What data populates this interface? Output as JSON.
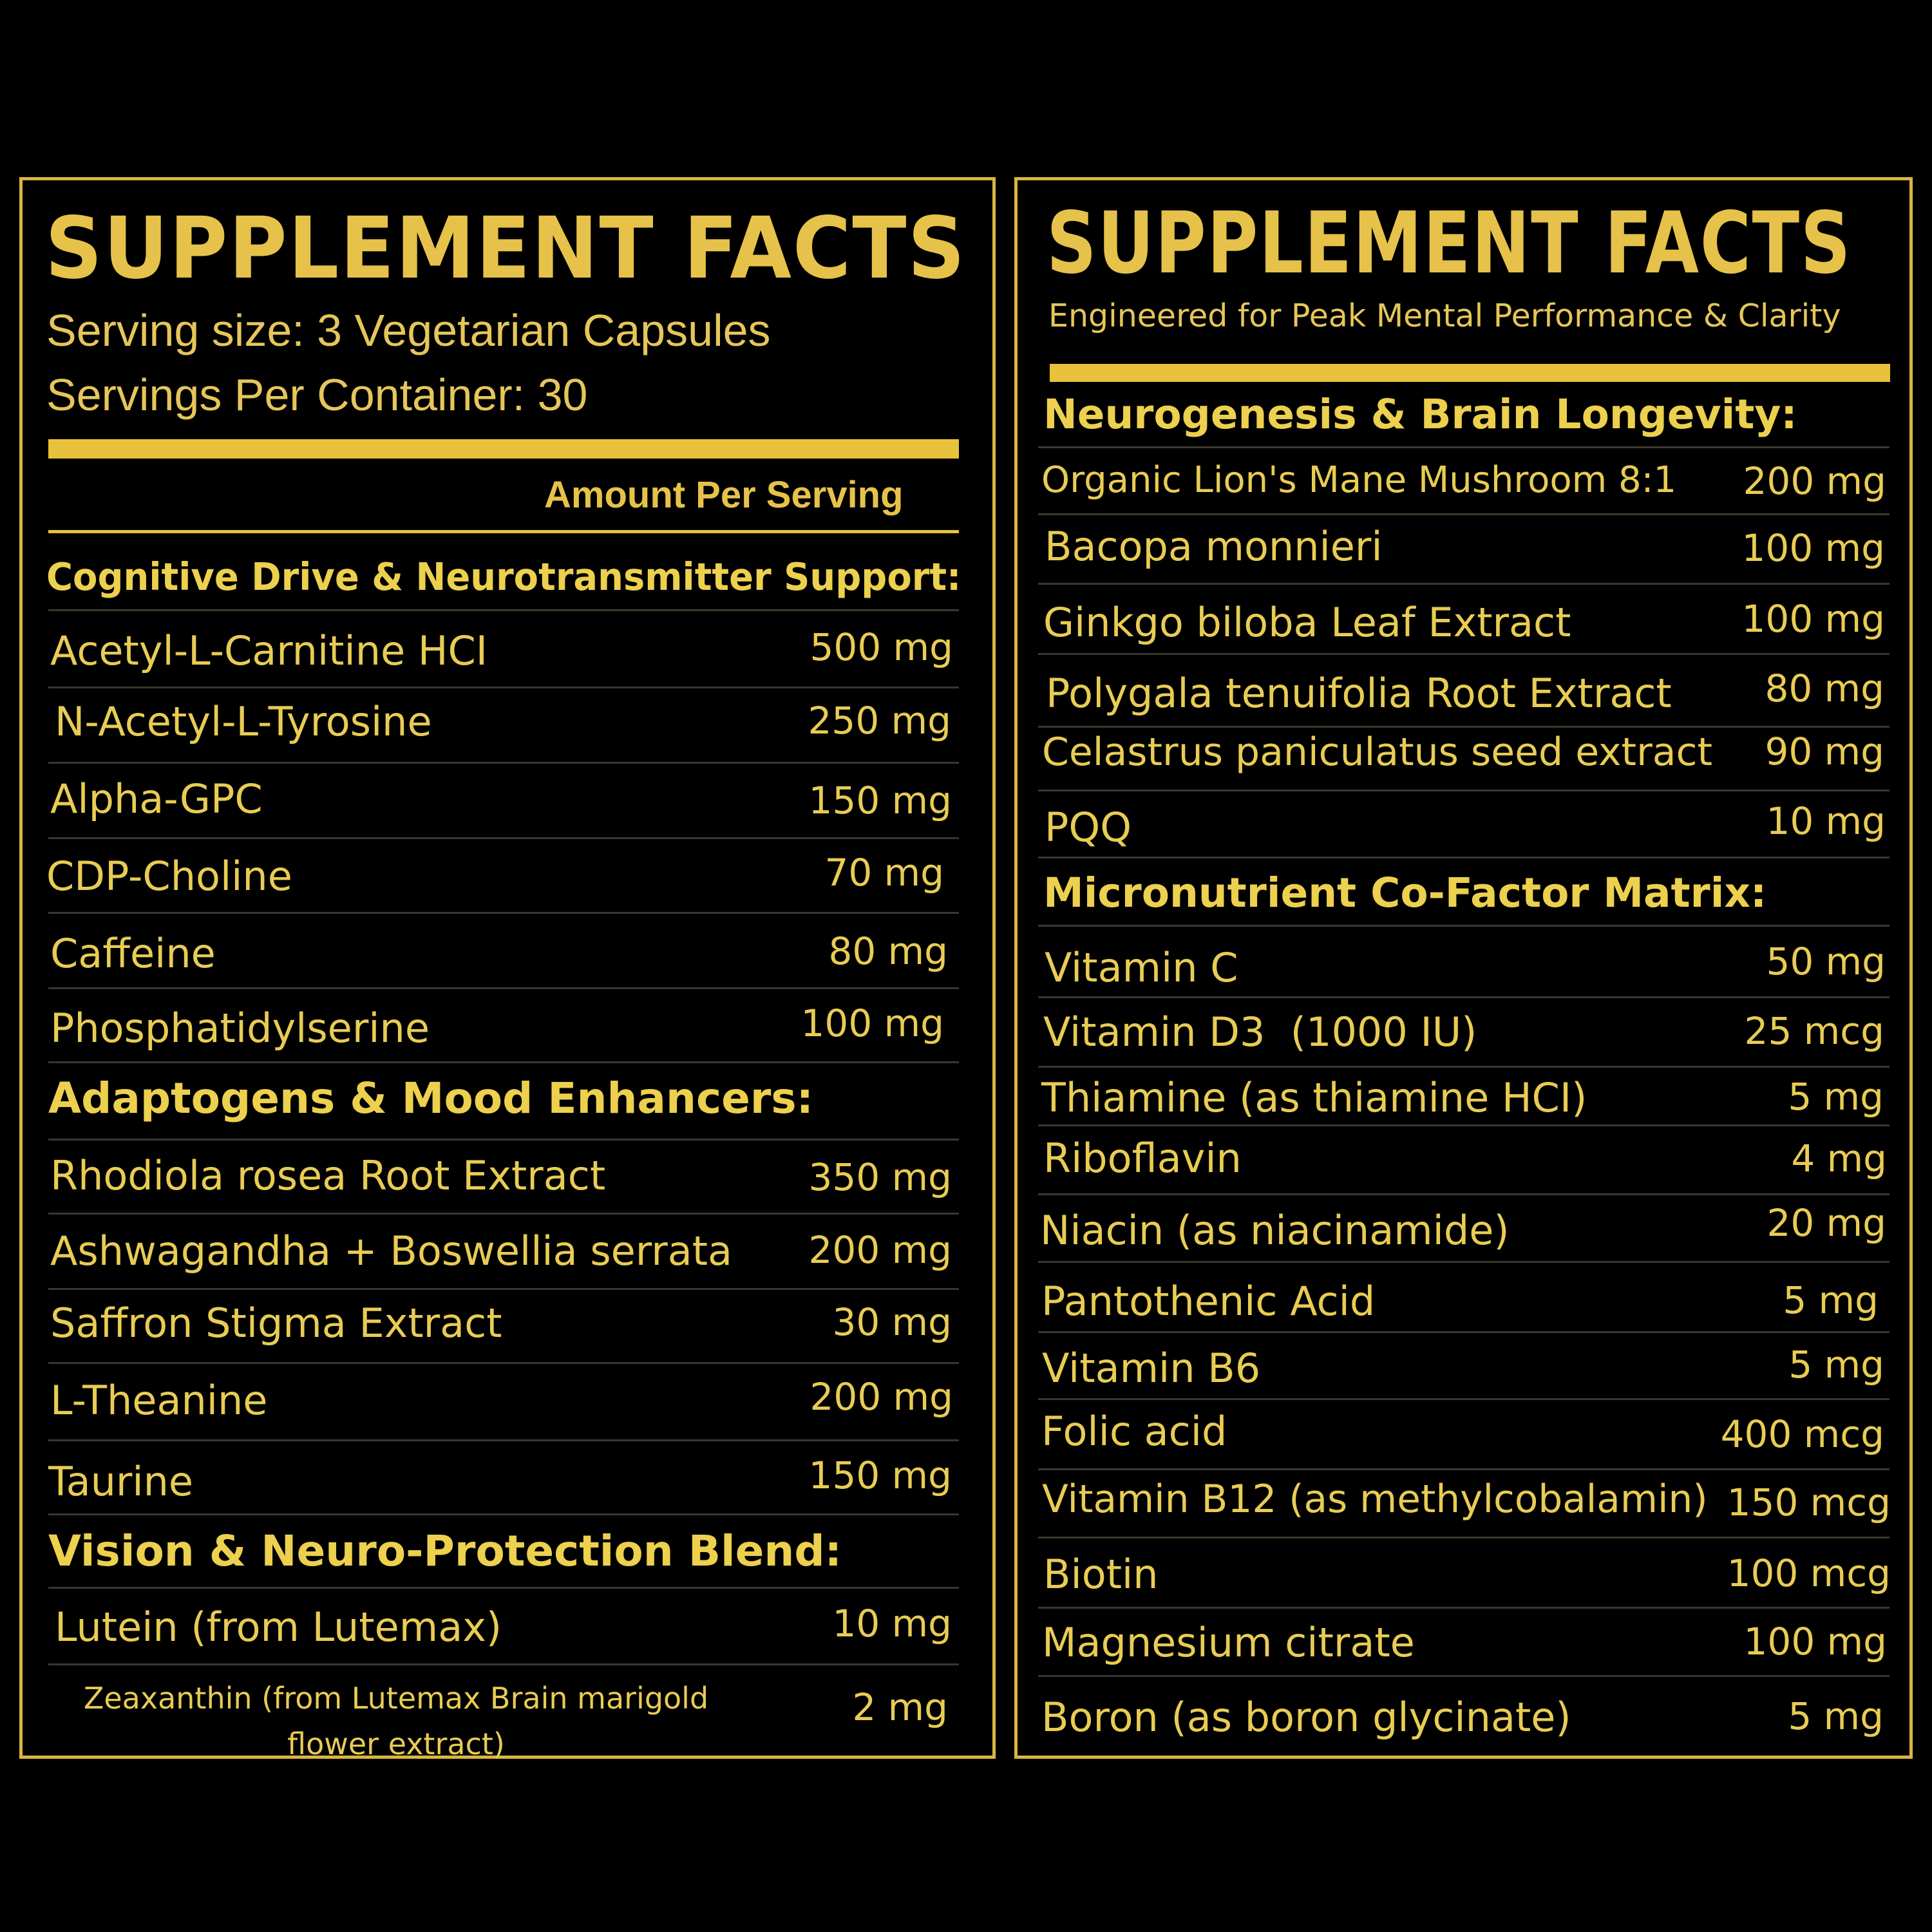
{
  "left": {
    "title": "SUPPLEMENT FACTS",
    "serving_size": "Serving size: 3 Vegetarian Capsules",
    "servings_per_container": "Servings Per Container: 30",
    "amount_header": "Amount Per Serving",
    "sections": [
      {
        "heading": "Cognitive Drive & Neurotransmitter Support:",
        "items": [
          {
            "name": "Acetyl-L-Carnitine HCI",
            "amount": "500 mg"
          },
          {
            "name": "N-Acetyl-L-Tyrosine",
            "amount": "250 mg"
          },
          {
            "name": "Alpha-GPC",
            "amount": "150 mg"
          },
          {
            "name": "CDP-Choline",
            "amount": "70 mg"
          },
          {
            "name": "Caffeine",
            "amount": "80 mg"
          },
          {
            "name": "Phosphatidylserine",
            "amount": "100 mg"
          }
        ]
      },
      {
        "heading": "Adaptogens & Mood Enhancers:",
        "items": [
          {
            "name": "Rhodiola rosea Root Extract",
            "amount": "350 mg"
          },
          {
            "name": "Ashwagandha + Boswellia serrata",
            "amount": "200 mg"
          },
          {
            "name": "Saffron Stigma Extract",
            "amount": "30 mg"
          },
          {
            "name": "L-Theanine",
            "amount": "200 mg"
          },
          {
            "name": "Taurine",
            "amount": "150 mg"
          }
        ]
      },
      {
        "heading": "Vision & Neuro-Protection Blend:",
        "items": [
          {
            "name": "Lutein (from Lutemax)",
            "amount": "10 mg"
          },
          {
            "name_line1": "Zeaxanthin (from Lutemax Brain marigold",
            "name_line2": "flower extract)",
            "amount": "2 mg"
          }
        ]
      }
    ]
  },
  "right": {
    "title": "SUPPLEMENT FACTS",
    "tagline": "Engineered for Peak Mental Performance & Clarity",
    "sections": [
      {
        "heading": "Neurogenesis & Brain Longevity:",
        "items": [
          {
            "name": "Organic Lion's Mane Mushroom 8:1",
            "amount": "200 mg"
          },
          {
            "name": "Bacopa monnieri",
            "amount": "100 mg"
          },
          {
            "name": "Ginkgo biloba Leaf Extract",
            "amount": "100 mg"
          },
          {
            "name": "Polygala tenuifolia Root Extract",
            "amount": "80 mg"
          },
          {
            "name": "Celastrus paniculatus seed extract",
            "amount": "90 mg"
          },
          {
            "name": "PQQ",
            "amount": "10 mg"
          }
        ]
      },
      {
        "heading": "Micronutrient Co-Factor Matrix:",
        "items": [
          {
            "name": "Vitamin C",
            "amount": "50 mg"
          },
          {
            "name": "Vitamin D3  (1000 IU)",
            "amount": "25 mcg"
          },
          {
            "name": "Thiamine (as thiamine HCI)",
            "amount": "5 mg"
          },
          {
            "name": "Riboflavin",
            "amount": "4 mg"
          },
          {
            "name": "Niacin (as niacinamide)",
            "amount": "20 mg"
          },
          {
            "name": "Pantothenic Acid",
            "amount": "5 mg"
          },
          {
            "name": "Vitamin B6",
            "amount": "5 mg"
          },
          {
            "name": "Folic acid",
            "amount": "400 mcg"
          },
          {
            "name": "Vitamin B12 (as methylcobalamin)",
            "amount": "150 mcg"
          },
          {
            "name": "Biotin",
            "amount": "100 mcg"
          },
          {
            "name": "Magnesium citrate",
            "amount": "100 mg"
          },
          {
            "name": "Boron (as boron glycinate)",
            "amount": "5 mg"
          }
        ]
      }
    ]
  }
}
